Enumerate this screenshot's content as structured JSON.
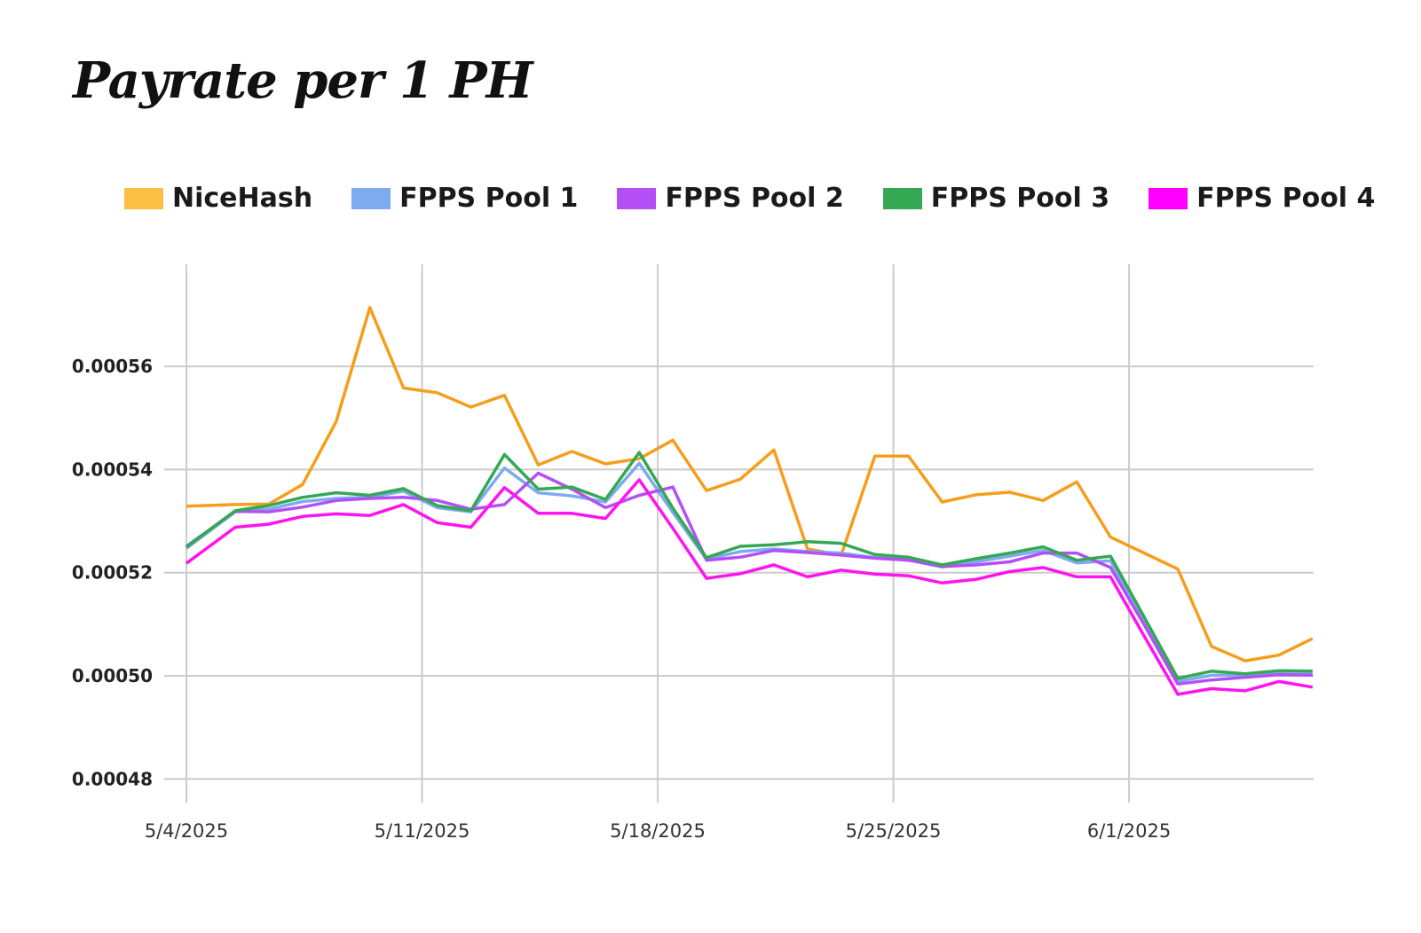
{
  "chart_data": {
    "type": "line",
    "title": "Payrate per 1 PH",
    "xlabel": "",
    "ylabel": "",
    "grid": true,
    "legend_position": "top",
    "ylim": [
      0.000475,
      0.00058
    ],
    "y_ticks": [
      "0.00048",
      "0.00050",
      "0.00052",
      "0.00054",
      "0.00056"
    ],
    "y_tick_values": [
      0.00048,
      0.0005,
      0.00052,
      0.00054,
      0.00056
    ],
    "x_ticks": [
      "5/4/2025",
      "5/11/2025",
      "5/18/2025",
      "5/25/2025",
      "6/1/2025"
    ],
    "x": [
      "5/4/2025",
      "5/5/2025",
      "5/6/2025",
      "5/7/2025",
      "5/8/2025",
      "5/9/2025",
      "5/10/2025",
      "5/11/2025",
      "5/12/2025",
      "5/13/2025",
      "5/14/2025",
      "5/15/2025",
      "5/16/2025",
      "5/17/2025",
      "5/18/2025",
      "5/19/2025",
      "5/20/2025",
      "5/21/2025",
      "5/22/2025",
      "5/23/2025",
      "5/24/2025",
      "5/25/2025",
      "5/26/2025",
      "5/27/2025",
      "5/28/2025",
      "5/29/2025",
      "5/30/2025",
      "5/31/2025",
      "6/1/2025",
      "6/2/2025",
      "6/3/2025",
      "6/4/2025",
      "6/5/2025",
      "6/6/2025"
    ],
    "series": [
      {
        "name": "NiceHash",
        "color": "#f59e1b",
        "swatch": "#fbbf45",
        "values": [
          0.0005329,
          0.0005332,
          0.0005333,
          0.0005371,
          0.0005493,
          0.0005714,
          0.0005558,
          0.0005549,
          0.0005521,
          0.0005544,
          0.0005409,
          0.0005435,
          0.0005411,
          0.0005421,
          0.0005457,
          0.0005359,
          0.0005381,
          0.0005438,
          0.0005246,
          0.0005234,
          0.0005426,
          0.0005426,
          0.0005337,
          0.0005351,
          0.0005356,
          0.000534,
          0.0005376,
          0.0005269,
          0.0005238,
          0.0005207,
          0.0005057,
          0.0005029,
          0.000504,
          0.0005072
        ]
      },
      {
        "name": "FPPS Pool 1",
        "color": "#7eaaf0",
        "swatch": "#7eaaf0",
        "values": [
          0.0005247,
          0.0005318,
          0.0005323,
          0.0005338,
          0.0005344,
          0.0005346,
          0.0005358,
          0.0005326,
          0.0005318,
          0.0005403,
          0.0005355,
          0.0005349,
          0.0005337,
          0.0005412,
          0.0005317,
          0.0005226,
          0.0005241,
          0.0005246,
          0.0005241,
          0.0005238,
          0.0005229,
          0.0005225,
          0.0005211,
          0.0005221,
          0.0005232,
          0.0005243,
          0.0005219,
          0.0005223,
          0.0005105,
          0.0004989,
          0.0005001,
          0.0005001,
          0.0005004,
          0.0005003
        ]
      },
      {
        "name": "FPPS Pool 2",
        "color": "#b44ff8",
        "swatch": "#b44ff8",
        "values": [
          0.0005251,
          0.0005319,
          0.0005318,
          0.0005327,
          0.000534,
          0.0005344,
          0.0005346,
          0.000534,
          0.0005323,
          0.0005332,
          0.0005393,
          0.0005362,
          0.0005326,
          0.000535,
          0.0005366,
          0.0005224,
          0.000523,
          0.0005243,
          0.0005239,
          0.0005234,
          0.0005228,
          0.0005224,
          0.0005212,
          0.0005215,
          0.0005221,
          0.0005238,
          0.0005238,
          0.000521,
          0.0005099,
          0.0004984,
          0.0004992,
          0.0004997,
          0.0005002,
          0.0005001
        ]
      },
      {
        "name": "FPPS Pool 3",
        "color": "#34a853",
        "swatch": "#34a853",
        "values": [
          0.000525,
          0.000532,
          0.000533,
          0.0005346,
          0.0005355,
          0.000535,
          0.0005363,
          0.000533,
          0.000532,
          0.0005429,
          0.0005362,
          0.0005366,
          0.0005342,
          0.0005433,
          0.0005325,
          0.0005229,
          0.0005251,
          0.0005254,
          0.000526,
          0.0005257,
          0.0005235,
          0.000523,
          0.0005215,
          0.0005227,
          0.0005238,
          0.000525,
          0.0005224,
          0.0005232,
          0.0005114,
          0.0004995,
          0.0005009,
          0.0005004,
          0.000501,
          0.0005009
        ]
      },
      {
        "name": "FPPS Pool 4",
        "color": "#ff14f0",
        "swatch": "#ff00ff",
        "values": [
          0.0005218,
          0.0005288,
          0.0005294,
          0.0005309,
          0.0005314,
          0.0005311,
          0.0005332,
          0.0005297,
          0.0005288,
          0.0005365,
          0.0005315,
          0.0005315,
          0.0005305,
          0.000538,
          0.0005286,
          0.0005189,
          0.0005198,
          0.0005215,
          0.0005192,
          0.0005205,
          0.0005197,
          0.0005194,
          0.000518,
          0.0005187,
          0.0005202,
          0.000521,
          0.0005192,
          0.0005192,
          0.0005077,
          0.0004964,
          0.0004975,
          0.0004971,
          0.0004989,
          0.0004978
        ]
      }
    ]
  }
}
